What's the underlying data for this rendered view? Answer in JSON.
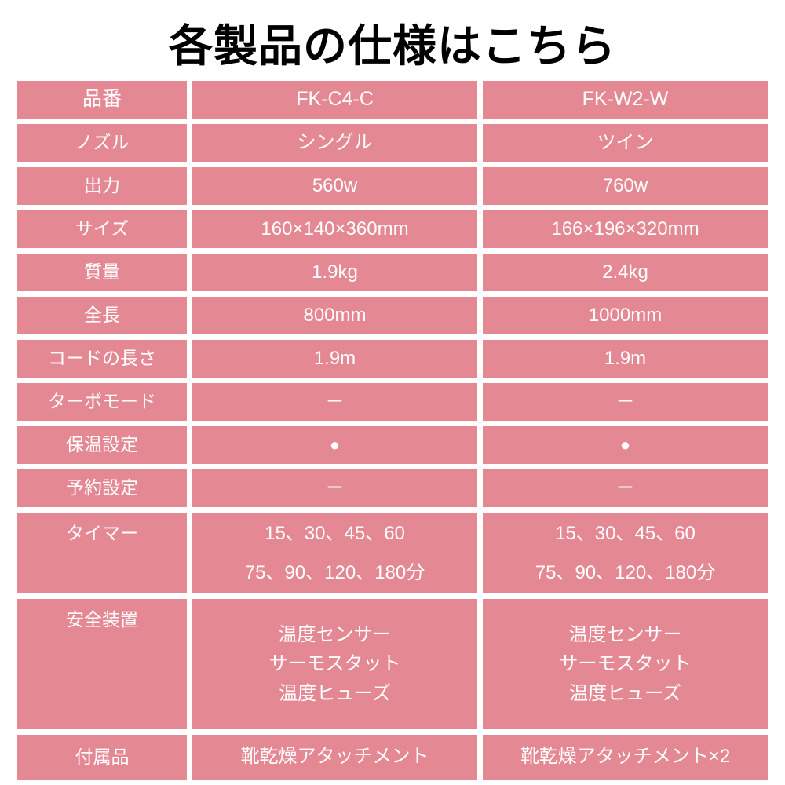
{
  "title": "各製品の仕様はこちら",
  "colors": {
    "table_pink": "#e48893",
    "cell_text": "#ffffff",
    "title_text": "#000000",
    "background": "#ffffff"
  },
  "symbols": {
    "supported": "●",
    "not_supported": "ー"
  },
  "table": {
    "rows": [
      {
        "label": "品番",
        "c1": "FK-C4-C",
        "c2": "FK-W2-W"
      },
      {
        "label": "ノズル",
        "c1": "シングル",
        "c2": "ツイン"
      },
      {
        "label": "出力",
        "c1": "560w",
        "c2": "760w"
      },
      {
        "label": "サイズ",
        "c1": "160×140×360mm",
        "c2": "166×196×320mm"
      },
      {
        "label": "質量",
        "c1": "1.9kg",
        "c2": "2.4kg"
      },
      {
        "label": "全長",
        "c1": "800mm",
        "c2": "1000mm"
      },
      {
        "label": "コードの長さ",
        "c1": "1.9m",
        "c2": "1.9m"
      },
      {
        "label": "ターボモード",
        "c1": "ー",
        "c2": "ー"
      },
      {
        "label": "保温設定",
        "c1": "●",
        "c2": "●"
      },
      {
        "label": "予約設定",
        "c1": "ー",
        "c2": "ー"
      },
      {
        "label": "タイマー",
        "c1": "15、30、45、60\n75、90、120、180分",
        "c2": "15、30、45、60\n75、90、120、180分"
      },
      {
        "label": "安全装置",
        "c1": "温度センサー\nサーモスタット\n温度ヒューズ",
        "c2": "温度センサー\nサーモスタット\n温度ヒューズ"
      },
      {
        "label": "付属品",
        "c1": "靴乾燥アタッチメント",
        "c2": "靴乾燥アタッチメント×2"
      }
    ]
  }
}
